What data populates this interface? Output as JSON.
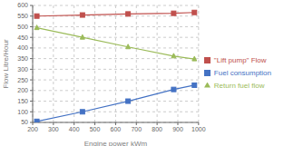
{
  "chart_data": {
    "type": "line",
    "x": [
      220,
      440,
      660,
      880,
      980
    ],
    "series": [
      {
        "name": "Fuel consumption",
        "color": "#4472c4",
        "marker": "square",
        "values": [
          55,
          100,
          150,
          205,
          225
        ]
      },
      {
        "name": "\"Lift pump\" Flow",
        "color": "#c0504d",
        "marker": "square",
        "values": [
          550,
          555,
          560,
          563,
          567
        ]
      },
      {
        "name": "Return fuel flow",
        "color": "#9bbb59",
        "marker": "triangle",
        "values": [
          495,
          450,
          405,
          362,
          348
        ]
      }
    ],
    "xlabel": "Engine power kWm",
    "ylabel": "Flow Litre/Hour",
    "xlim": [
      200,
      1000
    ],
    "ylim": [
      50,
      600
    ],
    "xticks": [
      200,
      300,
      400,
      500,
      600,
      700,
      800,
      900,
      1000
    ],
    "yticks": [
      50,
      100,
      150,
      200,
      250,
      300,
      350,
      400,
      450,
      500,
      550,
      600
    ],
    "grid": true,
    "legend": "right"
  }
}
